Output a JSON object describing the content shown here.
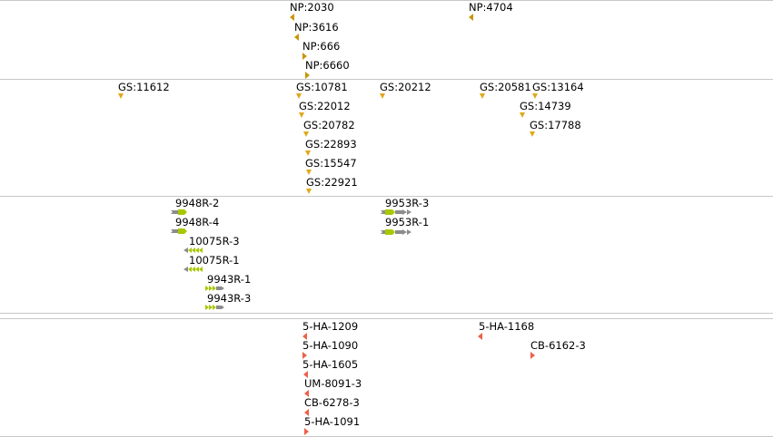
{
  "colors": {
    "separator": "#c8c8c8",
    "np": "#c8960a",
    "gs": "#e0a818",
    "insert": "#a8c800",
    "insert_backbone": "#8c8c8c",
    "ha": "#ee6048"
  },
  "tracks": [
    {
      "id": "np",
      "features": [
        {
          "label": "NP:2030",
          "marker": "triangle-left"
        },
        {
          "label": "NP:3616",
          "marker": "triangle-left"
        },
        {
          "label": "NP:666",
          "marker": "triangle-right"
        },
        {
          "label": "NP:6660",
          "marker": "triangle-right"
        },
        {
          "label": "NP:4704",
          "marker": "triangle-left"
        }
      ]
    },
    {
      "id": "gs",
      "features": [
        {
          "label": "GS:11612",
          "marker": "triangle-down"
        },
        {
          "label": "GS:10781",
          "marker": "triangle-down"
        },
        {
          "label": "GS:22012",
          "marker": "triangle-down"
        },
        {
          "label": "GS:20782",
          "marker": "triangle-down"
        },
        {
          "label": "GS:22893",
          "marker": "triangle-down"
        },
        {
          "label": "GS:15547",
          "marker": "triangle-down"
        },
        {
          "label": "GS:22921",
          "marker": "triangle-down"
        },
        {
          "label": "GS:20212",
          "marker": "triangle-down"
        },
        {
          "label": "GS:20581",
          "marker": "triangle-down"
        },
        {
          "label": "GS:13164",
          "marker": "triangle-down"
        },
        {
          "label": "GS:14739",
          "marker": "triangle-down"
        },
        {
          "label": "GS:17788",
          "marker": "triangle-down"
        }
      ]
    },
    {
      "id": "inserts",
      "features": [
        {
          "label": "9948R-2",
          "marker": "insert-fwd"
        },
        {
          "label": "9948R-4",
          "marker": "insert-fwd"
        },
        {
          "label": "10075R-3",
          "marker": "insert-rev"
        },
        {
          "label": "10075R-1",
          "marker": "insert-rev"
        },
        {
          "label": "9943R-1",
          "marker": "insert-fwd-short"
        },
        {
          "label": "9943R-3",
          "marker": "insert-fwd-short"
        },
        {
          "label": "9953R-3",
          "marker": "insert-fwd"
        },
        {
          "label": "9953R-1",
          "marker": "insert-fwd"
        }
      ]
    },
    {
      "id": "ha",
      "features": [
        {
          "label": "5-HA-1209",
          "marker": "triangle-left"
        },
        {
          "label": "5-HA-1090",
          "marker": "triangle-right"
        },
        {
          "label": "5-HA-1605",
          "marker": "triangle-left"
        },
        {
          "label": "UM-8091-3",
          "marker": "triangle-left"
        },
        {
          "label": "CB-6278-3",
          "marker": "triangle-left"
        },
        {
          "label": "5-HA-1091",
          "marker": "triangle-right"
        },
        {
          "label": "5-HA-1168",
          "marker": "triangle-left"
        },
        {
          "label": "CB-6162-3",
          "marker": "triangle-right"
        }
      ]
    }
  ]
}
